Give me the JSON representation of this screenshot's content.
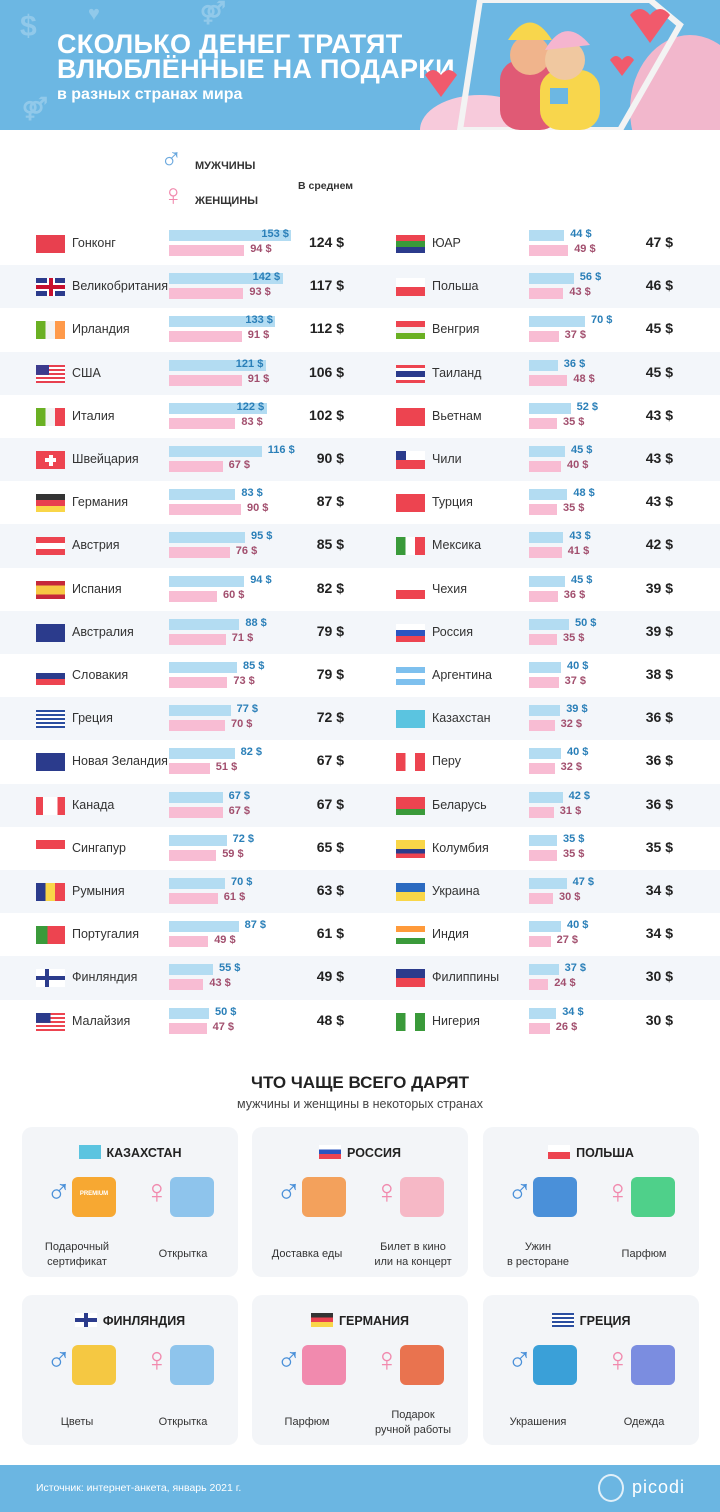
{
  "header": {
    "title_line1": "СКОЛЬКО ДЕНЕГ ТРАТЯТ",
    "title_line2": "ВЛЮБЛЁННЫЕ НА ПОДАРКИ",
    "subtitle": "в разных странах мира"
  },
  "legend": {
    "male": "МУЖЧИНЫ",
    "female": "ЖЕНЩИНЫ",
    "average": "В среднем"
  },
  "colors": {
    "male": "#b3dcf2",
    "female": "#f8bcd3",
    "male_label": "#2a7fb8",
    "female_label": "#a24f6e",
    "header": "#6cb7e3"
  },
  "chart_data": {
    "type": "bar",
    "unit": "$",
    "series_names": [
      "МУЖЧИНЫ",
      "ЖЕНЩИНЫ",
      "В среднем"
    ],
    "rows": [
      {
        "country": "Гонконг",
        "flag": "hk",
        "male": 153,
        "female": 94,
        "avg": 124
      },
      {
        "country": "Великобритания",
        "flag": "gb",
        "male": 142,
        "female": 93,
        "avg": 117
      },
      {
        "country": "Ирландия",
        "flag": "ie",
        "male": 133,
        "female": 91,
        "avg": 112
      },
      {
        "country": "США",
        "flag": "us",
        "male": 121,
        "female": 91,
        "avg": 106
      },
      {
        "country": "Италия",
        "flag": "it",
        "male": 122,
        "female": 83,
        "avg": 102
      },
      {
        "country": "Швейцария",
        "flag": "ch",
        "male": 116,
        "female": 67,
        "avg": 90
      },
      {
        "country": "Германия",
        "flag": "de",
        "male": 83,
        "female": 90,
        "avg": 87
      },
      {
        "country": "Австрия",
        "flag": "at",
        "male": 95,
        "female": 76,
        "avg": 85
      },
      {
        "country": "Испания",
        "flag": "es",
        "male": 94,
        "female": 60,
        "avg": 82
      },
      {
        "country": "Австралия",
        "flag": "au",
        "male": 88,
        "female": 71,
        "avg": 79
      },
      {
        "country": "Словакия",
        "flag": "sk",
        "male": 85,
        "female": 73,
        "avg": 79
      },
      {
        "country": "Греция",
        "flag": "gr",
        "male": 77,
        "female": 70,
        "avg": 72
      },
      {
        "country": "Новая Зеландия",
        "flag": "nz",
        "male": 82,
        "female": 51,
        "avg": 67
      },
      {
        "country": "Канада",
        "flag": "ca",
        "male": 67,
        "female": 67,
        "avg": 67
      },
      {
        "country": "Сингапур",
        "flag": "sg",
        "male": 72,
        "female": 59,
        "avg": 65
      },
      {
        "country": "Румыния",
        "flag": "ro",
        "male": 70,
        "female": 61,
        "avg": 63
      },
      {
        "country": "Португалия",
        "flag": "pt",
        "male": 87,
        "female": 49,
        "avg": 61
      },
      {
        "country": "Финляндия",
        "flag": "fi",
        "male": 55,
        "female": 43,
        "avg": 49
      },
      {
        "country": "Малайзия",
        "flag": "my",
        "male": 50,
        "female": 47,
        "avg": 48
      },
      {
        "country": "ЮАР",
        "flag": "za",
        "male": 44,
        "female": 49,
        "avg": 47
      },
      {
        "country": "Польша",
        "flag": "pl",
        "male": 56,
        "female": 43,
        "avg": 46
      },
      {
        "country": "Венгрия",
        "flag": "hu",
        "male": 70,
        "female": 37,
        "avg": 45
      },
      {
        "country": "Таиланд",
        "flag": "th",
        "male": 36,
        "female": 48,
        "avg": 45
      },
      {
        "country": "Вьетнам",
        "flag": "vn",
        "male": 52,
        "female": 35,
        "avg": 43
      },
      {
        "country": "Чили",
        "flag": "cl",
        "male": 45,
        "female": 40,
        "avg": 43
      },
      {
        "country": "Турция",
        "flag": "tr",
        "male": 48,
        "female": 35,
        "avg": 43
      },
      {
        "country": "Мексика",
        "flag": "mx",
        "male": 43,
        "female": 41,
        "avg": 42
      },
      {
        "country": "Чехия",
        "flag": "cz",
        "male": 45,
        "female": 36,
        "avg": 39
      },
      {
        "country": "Россия",
        "flag": "ru",
        "male": 50,
        "female": 35,
        "avg": 39
      },
      {
        "country": "Аргентина",
        "flag": "ar",
        "male": 40,
        "female": 37,
        "avg": 38
      },
      {
        "country": "Казахстан",
        "flag": "kz",
        "male": 39,
        "female": 32,
        "avg": 36
      },
      {
        "country": "Перу",
        "flag": "pe",
        "male": 40,
        "female": 32,
        "avg": 36
      },
      {
        "country": "Беларусь",
        "flag": "by",
        "male": 42,
        "female": 31,
        "avg": 36
      },
      {
        "country": "Колумбия",
        "flag": "co",
        "male": 35,
        "female": 35,
        "avg": 35
      },
      {
        "country": "Украина",
        "flag": "ua",
        "male": 47,
        "female": 30,
        "avg": 34
      },
      {
        "country": "Индия",
        "flag": "in",
        "male": 40,
        "female": 27,
        "avg": 34
      },
      {
        "country": "Филиппины",
        "flag": "ph",
        "male": 37,
        "female": 24,
        "avg": 30
      },
      {
        "country": "Нигерия",
        "flag": "ng",
        "male": 34,
        "female": 26,
        "avg": 30
      }
    ]
  },
  "gifts": {
    "title": "ЧТО ЧАЩЕ ВСЕГО ДАРЯТ",
    "subtitle": "мужчины и женщины в некоторых странах",
    "cards": [
      {
        "country": "КАЗАХСТАН",
        "flag": "kz",
        "male_gift": "Подарочный\nсертификат",
        "female_gift": "Открытка",
        "male_icon": "gift-certificate-icon",
        "female_icon": "envelope-heart-icon",
        "premium": "PREMIUM"
      },
      {
        "country": "РОССИЯ",
        "flag": "ru",
        "male_gift": "Доставка еды",
        "female_gift": "Билет в кино\nили на концерт",
        "male_icon": "delivery-scooter-icon",
        "female_icon": "ticket-icon"
      },
      {
        "country": "ПОЛЬША",
        "flag": "pl",
        "male_gift": "Ужин\nв ресторане",
        "female_gift": "Парфюм",
        "male_icon": "cloche-wine-icon",
        "female_icon": "perfume-bottle-icon"
      },
      {
        "country": "ФИНЛЯНДИЯ",
        "flag": "fi",
        "male_gift": "Цветы",
        "female_gift": "Открытка",
        "male_icon": "flowers-icon",
        "female_icon": "envelope-heart-icon"
      },
      {
        "country": "ГЕРМАНИЯ",
        "flag": "de",
        "male_gift": "Парфюм",
        "female_gift": "Подарок\nручной работы",
        "male_icon": "perfume-atomizer-icon",
        "female_icon": "knitted-sweater-icon"
      },
      {
        "country": "ГРЕЦИЯ",
        "flag": "gr",
        "male_gift": "Украшения",
        "female_gift": "Одежда",
        "male_icon": "earrings-icon",
        "female_icon": "jacket-icon"
      }
    ]
  },
  "footer": {
    "source": "Источник: интернет-анкета, январь 2021 г.",
    "brand": "picodi"
  }
}
